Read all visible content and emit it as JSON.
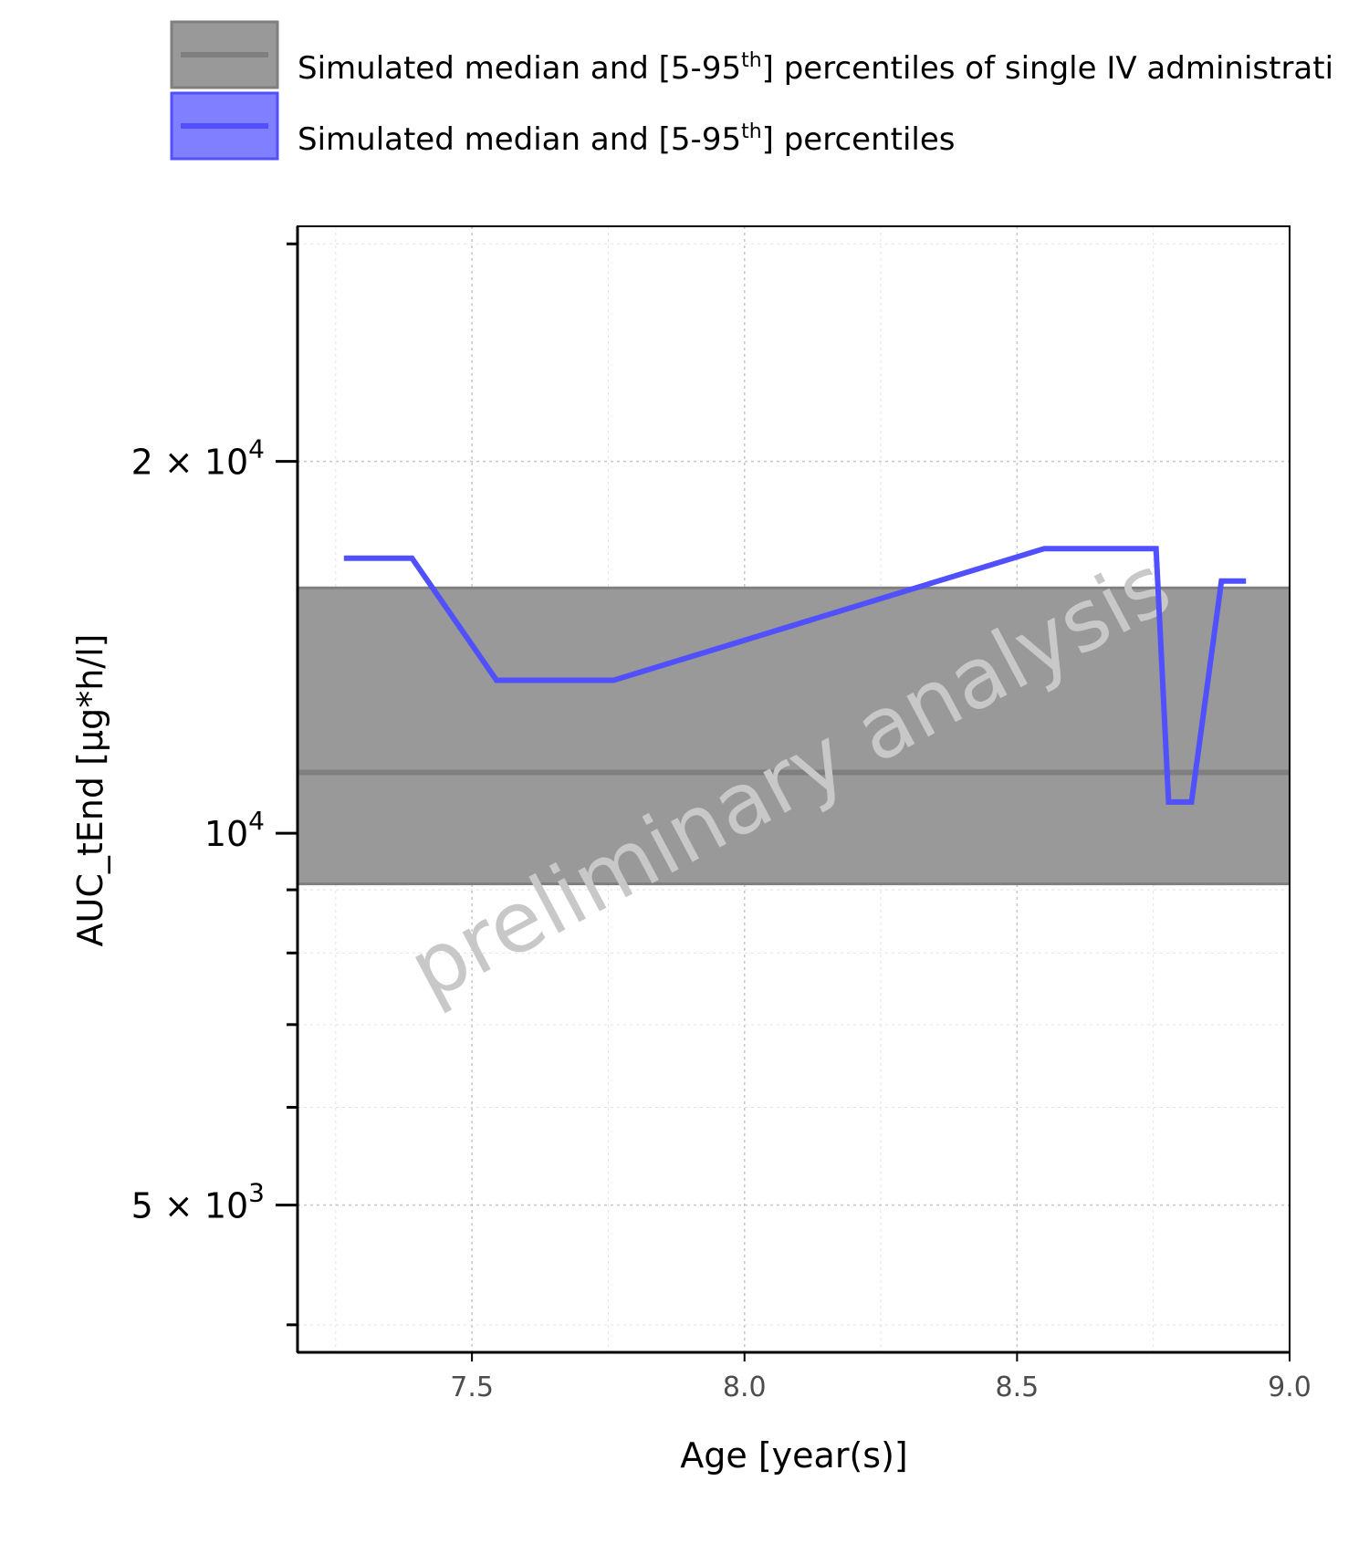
{
  "chart_data": {
    "type": "line",
    "xlabel": "Age [year(s)]",
    "ylabel": "AUC_tEnd [µg*h/l]",
    "xlim": [
      7.18,
      9.0
    ],
    "ylim": [
      3800,
      31000
    ],
    "y_scale": "log",
    "grid": true,
    "legend_placement": "top",
    "x_ticks": [
      7.5,
      8.0,
      8.5,
      9.0
    ],
    "x_tick_labels": [
      "7.5",
      "8.0",
      "8.5",
      "9.0"
    ],
    "y_major_ticks": [
      {
        "value": 5000,
        "mantissa": "5",
        "exponent": "3"
      },
      {
        "value": 10000,
        "mantissa": "",
        "exponent": "4"
      },
      {
        "value": 20000,
        "mantissa": "2",
        "exponent": "4"
      }
    ],
    "y_minor_ticks": [
      4000,
      6000,
      7000,
      8000,
      9000,
      30000
    ],
    "watermark": "preliminary analysis",
    "legend": [
      {
        "label_pre": "Simulated median and [5-95",
        "label_sup": "th",
        "label_post": "] percentiles of single IV administrati",
        "color": "#999999",
        "line_color": "#7f7f7f"
      },
      {
        "label_pre": "Simulated median and [5-95",
        "label_sup": "th",
        "label_post": "] percentiles",
        "color": "#7f7fff",
        "line_color": "#5050ff"
      }
    ],
    "reference_band": {
      "median": 11200,
      "lower": 9100,
      "upper": 15800,
      "fill": "#999999",
      "line": "#7f7f7f"
    },
    "series": [
      {
        "color": "#5050ff",
        "x": [
          7.265,
          7.39,
          7.545,
          7.76,
          8.55,
          8.755,
          8.778,
          8.82,
          8.875,
          8.92
        ],
        "y": [
          16700,
          16700,
          13300,
          13300,
          17000,
          17000,
          10600,
          10600,
          16000,
          16000
        ]
      }
    ]
  }
}
